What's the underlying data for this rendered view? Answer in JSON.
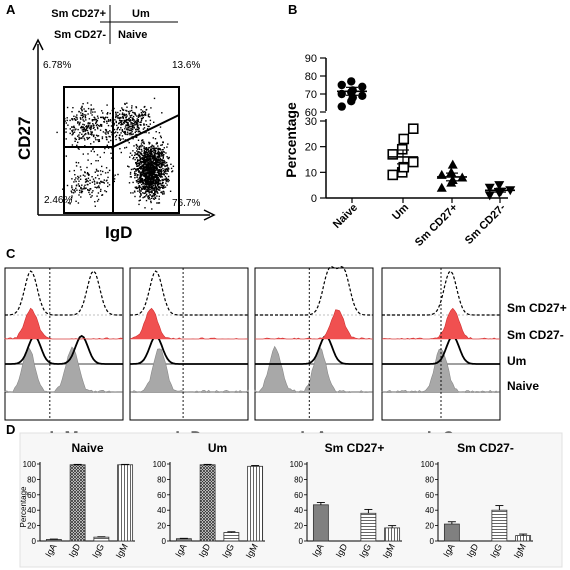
{
  "figure": {
    "panel_labels": [
      "A",
      "B",
      "C",
      "D"
    ]
  },
  "panel_a": {
    "gate_key": {
      "row1_left": "Sm CD27+",
      "row1_right": "Um",
      "row2_left": "Sm CD27-",
      "row2_right": "Naive"
    },
    "quadrants": {
      "top_left": "6.78%",
      "top_right": "13.6%",
      "bottom_left": "2.46%",
      "bottom_right": "76.7%"
    },
    "xlabel": "IgD",
    "ylabel": "CD27"
  },
  "chart_data": [
    {
      "panel": "B",
      "type": "scatter",
      "categories": [
        "Naive",
        "Um",
        "Sm CD27+",
        "Sm CD27-"
      ],
      "ylabel": "Percentage",
      "y_axis_break": true,
      "ylim_lower": [
        0,
        35
      ],
      "ylim_upper": [
        60,
        90
      ],
      "yticks": [
        0,
        10,
        20,
        30,
        60,
        70,
        80,
        90
      ],
      "markers": [
        "circle",
        "square",
        "triangle",
        "inverted-triangle"
      ],
      "points": [
        [
          63,
          66,
          68,
          69,
          70,
          71,
          72,
          74,
          75,
          77
        ],
        [
          9,
          10,
          12,
          14,
          17,
          19,
          23,
          27
        ],
        [
          4,
          6,
          7,
          8,
          9,
          10,
          13
        ],
        [
          1,
          2,
          2.5,
          3,
          4,
          5
        ]
      ],
      "means": [
        71.5,
        16,
        8.2,
        3
      ],
      "sems": [
        2.2,
        2.7,
        1.5,
        0.7
      ]
    },
    {
      "panel": "C",
      "type": "histogram-overlay",
      "plots": [
        "IgM",
        "IgD",
        "IgA",
        "IgG"
      ],
      "rows": [
        "Sm CD27+",
        "Sm CD27-",
        "Um",
        "Naive"
      ],
      "row_colors": [
        "#000000",
        "#f05050",
        "#000000",
        "#a8a8a8"
      ]
    },
    {
      "panel": "D",
      "type": "bar",
      "categories": [
        "IgA",
        "IgD",
        "IgG",
        "IgM"
      ],
      "ylabel": "Percentage",
      "ylim": [
        0,
        100
      ],
      "yticks": [
        0,
        20,
        40,
        60,
        80,
        100
      ],
      "charts": [
        {
          "title": "Naive",
          "values": [
            2,
            99,
            5,
            99
          ],
          "errors": [
            0.5,
            0.5,
            0.5,
            0.5
          ]
        },
        {
          "title": "Um",
          "values": [
            3,
            99,
            11,
            97
          ],
          "errors": [
            0.5,
            0.5,
            1,
            1
          ]
        },
        {
          "title": "Sm CD27+",
          "values": [
            47,
            0,
            36,
            17
          ],
          "errors": [
            3,
            0,
            5,
            3
          ]
        },
        {
          "title": "Sm CD27-",
          "values": [
            22,
            0,
            40,
            7
          ],
          "errors": [
            3,
            0,
            6,
            2
          ]
        }
      ],
      "patterns": [
        "solid-gray",
        "crosshatch",
        "horizontal-lines",
        "vertical-lines"
      ]
    }
  ],
  "colors": {
    "red_fill": "#f05050",
    "gray_fill": "#a8a8a8",
    "bar_gray": "#808080",
    "panel_bg": "#f7f7f7"
  }
}
